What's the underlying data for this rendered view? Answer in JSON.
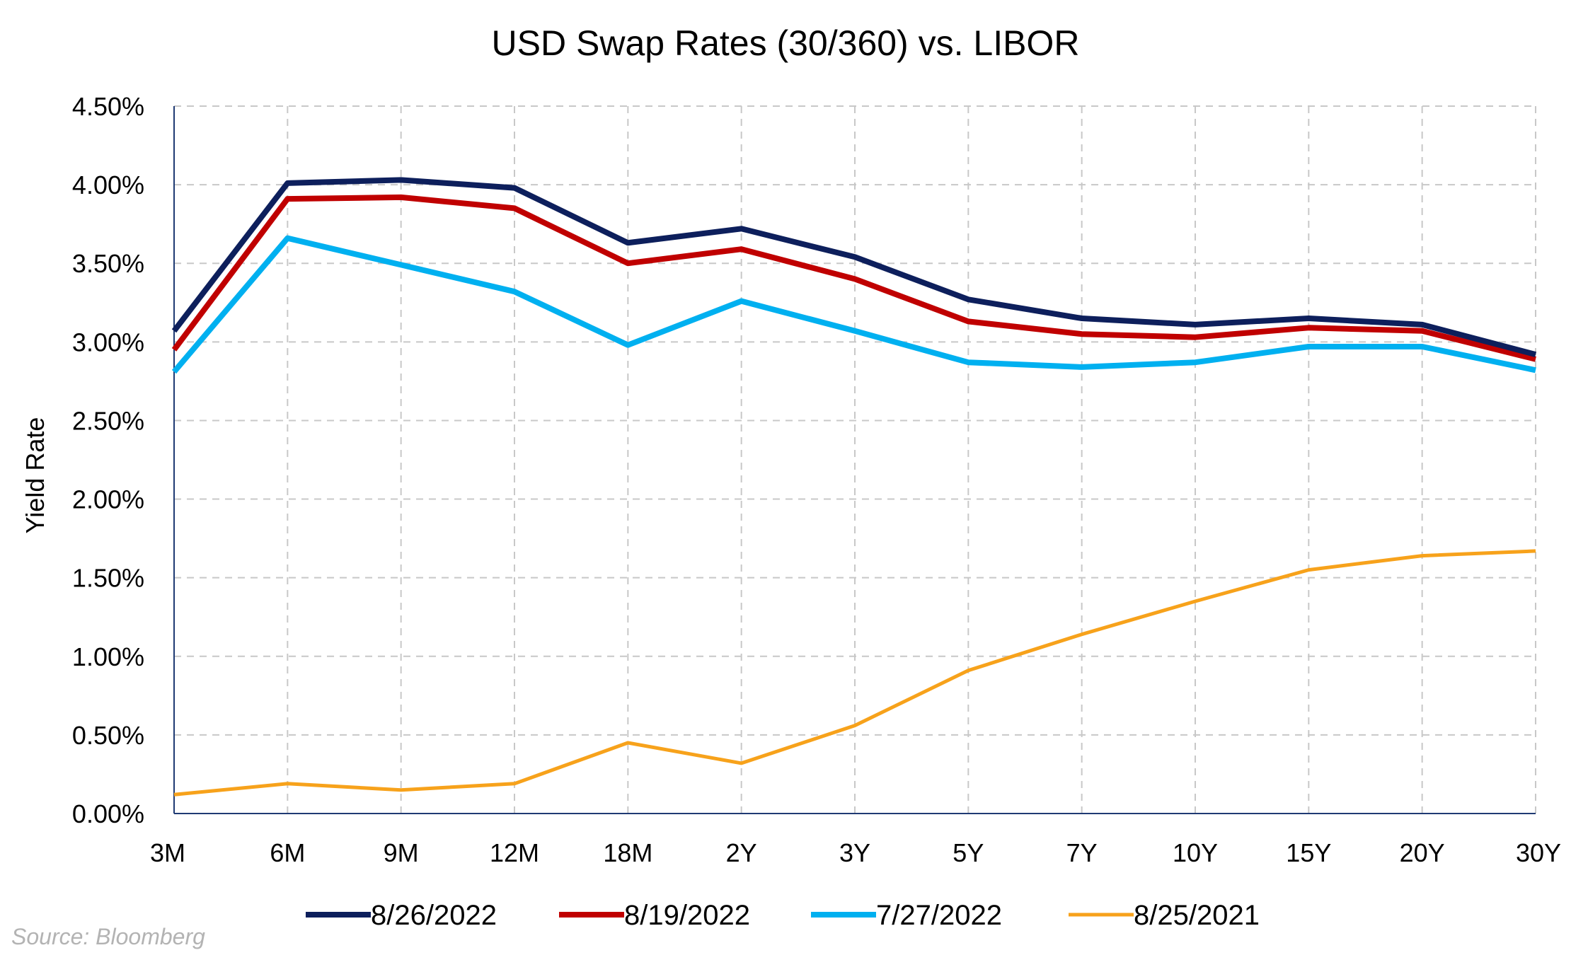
{
  "chart_data": {
    "type": "line",
    "title": "USD Swap Rates (30/360) vs. LIBOR",
    "xlabel": "",
    "ylabel": "Yield Rate",
    "categories": [
      "3M",
      "6M",
      "9M",
      "12M",
      "18M",
      "2Y",
      "3Y",
      "5Y",
      "7Y",
      "10Y",
      "15Y",
      "20Y",
      "30Y"
    ],
    "ylim": [
      0,
      4.5
    ],
    "y_ticks": [
      {
        "value": 0,
        "label": "0.00%"
      },
      {
        "value": 0.5,
        "label": "0.50%"
      },
      {
        "value": 1.0,
        "label": "1.00%"
      },
      {
        "value": 1.5,
        "label": "1.50%"
      },
      {
        "value": 2.0,
        "label": "2.00%"
      },
      {
        "value": 2.5,
        "label": "2.50%"
      },
      {
        "value": 3.0,
        "label": "3.00%"
      },
      {
        "value": 3.5,
        "label": "3.50%"
      },
      {
        "value": 4.0,
        "label": "4.00%"
      },
      {
        "value": 4.5,
        "label": "4.50%"
      }
    ],
    "grid": true,
    "legend_position": "bottom",
    "series": [
      {
        "name": "8/26/2022",
        "color": "#0d1f5c",
        "values": [
          3.07,
          4.01,
          4.03,
          3.98,
          3.63,
          3.72,
          3.54,
          3.27,
          3.15,
          3.11,
          3.15,
          3.11,
          2.92
        ]
      },
      {
        "name": "8/19/2022",
        "color": "#c00000",
        "values": [
          2.95,
          3.91,
          3.92,
          3.85,
          3.5,
          3.59,
          3.4,
          3.13,
          3.05,
          3.03,
          3.09,
          3.07,
          2.89
        ]
      },
      {
        "name": "7/27/2022",
        "color": "#00b0f0",
        "values": [
          2.81,
          3.66,
          3.49,
          3.32,
          2.98,
          3.26,
          3.07,
          2.87,
          2.84,
          2.87,
          2.97,
          2.97,
          2.82
        ]
      },
      {
        "name": "8/25/2021",
        "color": "#f7a21b",
        "values": [
          0.12,
          0.19,
          0.15,
          0.19,
          0.45,
          0.32,
          0.56,
          0.91,
          1.14,
          1.35,
          1.55,
          1.64,
          1.67
        ]
      }
    ]
  },
  "source_note": "Source: Bloomberg"
}
